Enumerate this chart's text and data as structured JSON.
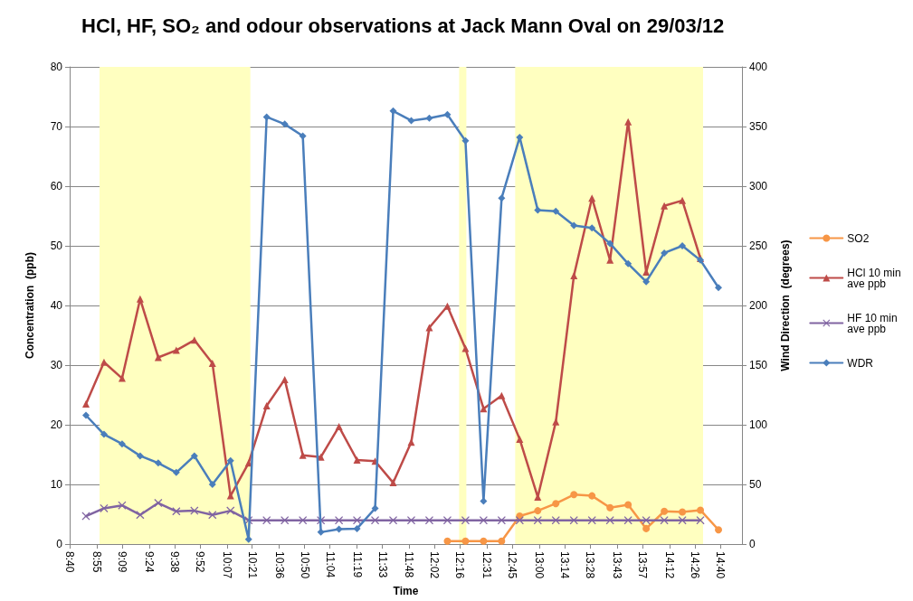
{
  "chart_data": {
    "type": "line",
    "title": "HCl, HF, SO₂ and odour observations at Jack Mann Oval on 29/03/12",
    "xlabel": "Time",
    "ylabel": "Concentration  (ppb)",
    "y2label": "Wind Direction  (degrees)",
    "x": [
      8.8167,
      8.9833,
      9.15,
      9.3167,
      9.4833,
      9.65,
      9.8167,
      9.9833,
      10.15,
      10.3167,
      10.4833,
      10.65,
      10.8167,
      10.9833,
      11.15,
      11.3167,
      11.4833,
      11.65,
      11.8167,
      11.9833,
      12.15,
      12.3167,
      12.4833,
      12.65,
      12.8167,
      12.9833,
      13.15,
      13.3167,
      13.4833,
      13.65,
      13.8167,
      13.9833,
      14.15,
      14.3167,
      14.4833,
      14.65
    ],
    "xlim": [
      8.6667,
      14.8667
    ],
    "xticks": [
      {
        "value": 8.6667,
        "label": "8:40"
      },
      {
        "value": 8.9167,
        "label": "8:55"
      },
      {
        "value": 9.15,
        "label": "9:09"
      },
      {
        "value": 9.4,
        "label": "9:24"
      },
      {
        "value": 9.6333,
        "label": "9:38"
      },
      {
        "value": 9.8667,
        "label": "9:52"
      },
      {
        "value": 10.1167,
        "label": "10:07"
      },
      {
        "value": 10.35,
        "label": "10:21"
      },
      {
        "value": 10.6,
        "label": "10:36"
      },
      {
        "value": 10.8333,
        "label": "10:50"
      },
      {
        "value": 11.0667,
        "label": "11:04"
      },
      {
        "value": 11.3167,
        "label": "11:19"
      },
      {
        "value": 11.55,
        "label": "11:33"
      },
      {
        "value": 11.8,
        "label": "11:48"
      },
      {
        "value": 12.0333,
        "label": "12:02"
      },
      {
        "value": 12.2667,
        "label": "12:16"
      },
      {
        "value": 12.5167,
        "label": "12:31"
      },
      {
        "value": 12.75,
        "label": "12:45"
      },
      {
        "value": 13,
        "label": "13:00"
      },
      {
        "value": 13.2333,
        "label": "13:14"
      },
      {
        "value": 13.4667,
        "label": "13:28"
      },
      {
        "value": 13.7167,
        "label": "13:43"
      },
      {
        "value": 13.95,
        "label": "13:57"
      },
      {
        "value": 14.2,
        "label": "14:12"
      },
      {
        "value": 14.4333,
        "label": "14:26"
      },
      {
        "value": 14.6667,
        "label": "14:40"
      }
    ],
    "ylim": [
      0,
      80
    ],
    "yticks": [
      0,
      10,
      20,
      30,
      40,
      50,
      60,
      70,
      80
    ],
    "y2lim": [
      0,
      400
    ],
    "y2ticks": [
      0,
      50,
      100,
      150,
      200,
      250,
      300,
      350,
      400
    ],
    "grid": "y",
    "legend": "right",
    "line_style": "solid",
    "bands": [
      {
        "axis": "x",
        "from": 8.942,
        "to": 10.333,
        "color": "#ffffc0"
      },
      {
        "axis": "x",
        "from": 12.258,
        "to": 12.325,
        "color": "#ffffc0"
      },
      {
        "axis": "x",
        "from": 12.775,
        "to": 14.508,
        "color": "#ffffc0"
      }
    ],
    "series": [
      {
        "name": "SO2",
        "color": "#f79646",
        "marker": "circle",
        "values": [
          null,
          null,
          null,
          null,
          null,
          null,
          null,
          null,
          null,
          null,
          null,
          null,
          null,
          null,
          null,
          null,
          null,
          null,
          null,
          null,
          0.5,
          0.5,
          0.5,
          0.5,
          4.7,
          5.6,
          6.8,
          8.3,
          8.1,
          6.1,
          6.6,
          2.6,
          5.5,
          5.4,
          5.7,
          2.4
        ]
      },
      {
        "name": "HCl 10 min ave ppb",
        "color": "#be4b48",
        "marker": "triangle",
        "values": [
          23.5,
          30.5,
          27.8,
          41.1,
          31.3,
          32.5,
          34.2,
          30.3,
          8.1,
          13.6,
          23.2,
          27.6,
          14.9,
          14.6,
          19.7,
          14.1,
          13.9,
          10.3,
          17.1,
          36.3,
          39.9,
          32.8,
          22.7,
          24.9,
          17.6,
          7.9,
          20.5,
          45.0,
          58.0,
          47.6,
          70.8,
          45.6,
          56.7,
          57.6,
          47.9,
          null
        ]
      },
      {
        "name": "HF 10 min ave ppb",
        "color": "#8064a2",
        "marker": "cross",
        "values": [
          4.7,
          6.0,
          6.5,
          4.9,
          6.9,
          5.5,
          5.6,
          4.9,
          5.6,
          4,
          4,
          4,
          4,
          4,
          4,
          4,
          4,
          4,
          4,
          4,
          4,
          4,
          4,
          4,
          4,
          4,
          4,
          4,
          4,
          4,
          4,
          4,
          4,
          4,
          4,
          null
        ]
      },
      {
        "name": "WDR",
        "color": "#4a7ebb",
        "marker": "diamond",
        "axis": "y2",
        "values": [
          108,
          92,
          84,
          74,
          68,
          60,
          74,
          50,
          70,
          4,
          358,
          352,
          342,
          10,
          12.5,
          13,
          30,
          363,
          355,
          357,
          360,
          338,
          36,
          290,
          341,
          280,
          279,
          267,
          265,
          252,
          235,
          220,
          244,
          250,
          238,
          215
        ]
      }
    ]
  }
}
